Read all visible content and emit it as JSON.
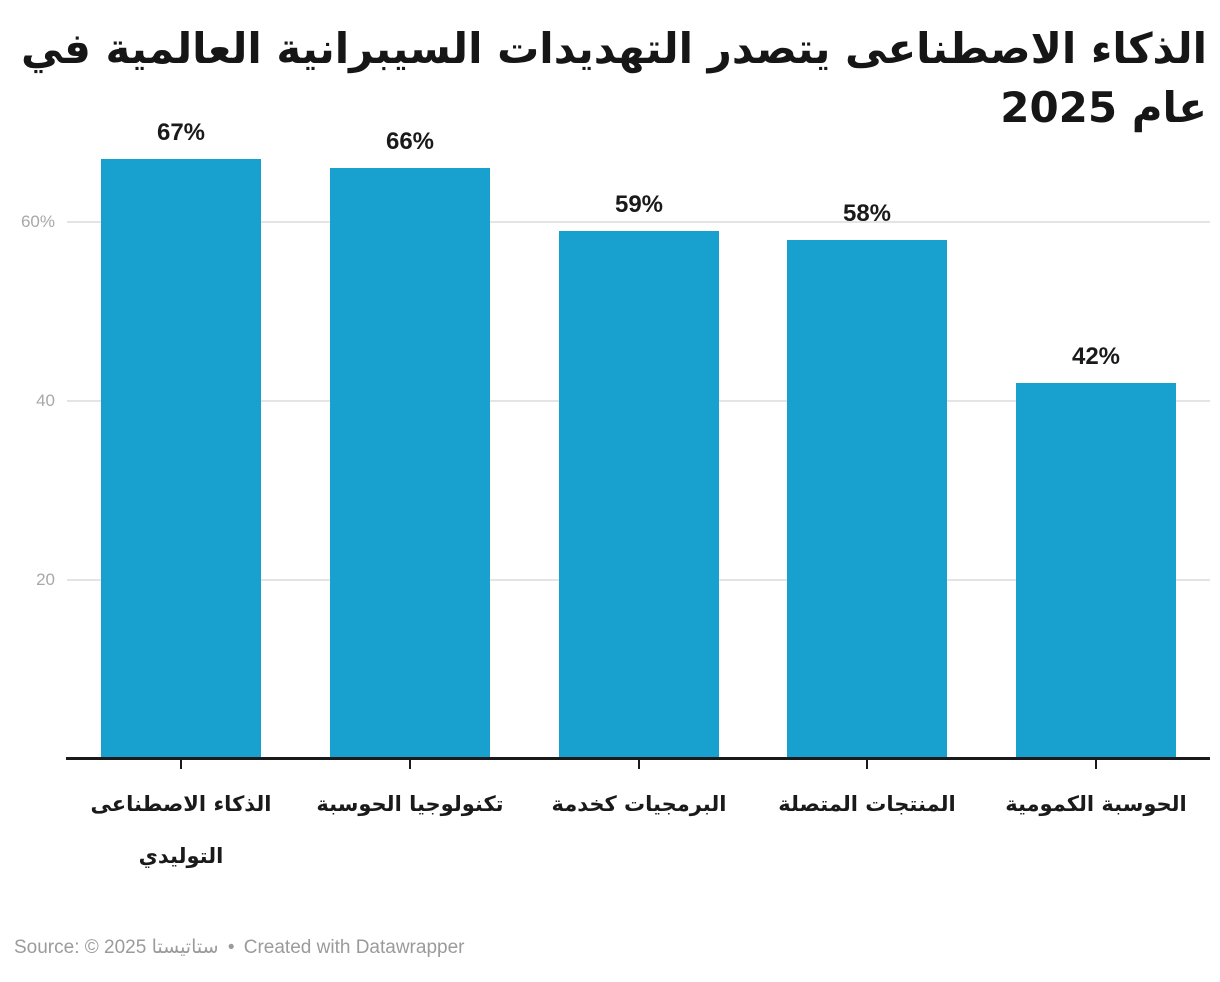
{
  "title": "الذكاء الاصطناعى يتصدر التهديدات السيبرانية العالمية في عام 2025",
  "footer": {
    "source_prefix": "Source: © 2025 ستاتيستا",
    "separator": "•",
    "attribution": "Created with Datawrapper"
  },
  "colors": {
    "bar": "#18a0ce",
    "axis": "#1a1a1a",
    "gridline": "#e4e4e4",
    "y_tick_label": "#a8a8a8",
    "value_label": "#1a1a1a",
    "footer_text": "#9b9b9b"
  },
  "chart_data": {
    "type": "bar",
    "title": "الذكاء الاصطناعى يتصدر التهديدات السيبرانية العالمية في عام 2025",
    "categories": [
      "الذكاء الاصطناعى التوليدي",
      "تكنولوجيا الحوسبة",
      "البرمجيات كخدمة",
      "المنتجات المتصلة",
      "الحوسبة الكمومية"
    ],
    "values": [
      67,
      66,
      59,
      58,
      42
    ],
    "value_labels": [
      "67%",
      "66%",
      "59%",
      "58%",
      "42%"
    ],
    "unit": "%",
    "xlabel": "",
    "ylabel": "",
    "ylim": [
      0,
      70
    ],
    "yticks": [
      {
        "value": 20,
        "label": "20"
      },
      {
        "value": 40,
        "label": "40"
      },
      {
        "value": 60,
        "label": "60%"
      }
    ],
    "grid": true,
    "legend": false,
    "source_note": "Source: © 2025 ستاتيستا • Created with Datawrapper"
  }
}
